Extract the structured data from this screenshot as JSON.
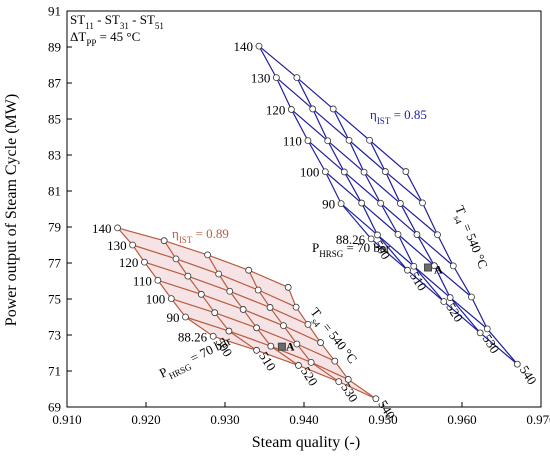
{
  "chart_data": {
    "type": "scatter",
    "title": "",
    "xlabel": "Steam quality (-)",
    "ylabel": "Power output of Steam Cycle (MW)",
    "xlim": [
      0.91,
      0.97
    ],
    "ylim": [
      69,
      91
    ],
    "xticks": [
      0.91,
      0.92,
      0.93,
      0.94,
      0.95,
      0.96,
      0.97
    ],
    "xtick_labels": [
      "0.910",
      "0.920",
      "0.930",
      "0.940",
      "0.950",
      "0.960",
      "0.970"
    ],
    "yticks": [
      69,
      71,
      73,
      75,
      77,
      79,
      81,
      83,
      85,
      87,
      89,
      91
    ],
    "ytick_labels": [
      "69",
      "71",
      "73",
      "75",
      "77",
      "79",
      "81",
      "83",
      "85",
      "87",
      "89",
      "91"
    ],
    "grid": false,
    "annotations": {
      "config_line1": "ST",
      "config_line1_sub": "11 - ST31 - ST51",
      "config_prefix": "ST",
      "config_subs": [
        "11",
        "31",
        "51"
      ],
      "config_sep": " - ",
      "dt_main": "ΔT",
      "dt_sub": "PP",
      "dt_value": " = 45 °C",
      "eta_main": "η",
      "eta_sub": "IST"
    },
    "series": [
      {
        "name": "η_IST = 0.85",
        "efficiency_label_value": " = 0.85",
        "color": "#1f1f9e",
        "pressure_label_main": "P",
        "pressure_label_sub": "HRSG",
        "pressure_label_value": " = 70 bar",
        "temp_label_main": "T",
        "temp_label_sub": "s4",
        "temp_label_value": " = 540 °C",
        "pressures": [
          "140",
          "130",
          "120",
          "110",
          "100",
          "90",
          "88.26"
        ],
        "temperatures": [
          "500",
          "510",
          "520",
          "530",
          "540"
        ],
        "marker_label": "A",
        "marker": {
          "x": 0.9557,
          "y": 76.75
        },
        "grid_points": [
          [
            [
              0.9343,
              89.05
            ],
            [
              0.9391,
              87.3
            ],
            [
              0.9437,
              85.56
            ],
            [
              0.9483,
              83.82
            ],
            [
              0.9529,
              82.08
            ]
          ],
          [
            [
              0.9365,
              87.3
            ],
            [
              0.9411,
              85.56
            ],
            [
              0.9457,
              83.82
            ],
            [
              0.9503,
              82.08
            ],
            [
              0.955,
              80.34
            ]
          ],
          [
            [
              0.9384,
              85.53
            ],
            [
              0.943,
              83.79
            ],
            [
              0.9476,
              82.05
            ],
            [
              0.9522,
              80.31
            ],
            [
              0.9569,
              78.57
            ]
          ],
          [
            [
              0.9405,
              83.8
            ],
            [
              0.9451,
              82.06
            ],
            [
              0.9497,
              80.32
            ],
            [
              0.9543,
              78.58
            ],
            [
              0.9589,
              76.84
            ]
          ],
          [
            [
              0.9427,
              82.07
            ],
            [
              0.9473,
              80.33
            ],
            [
              0.9519,
              78.59
            ],
            [
              0.9565,
              76.85
            ],
            [
              0.9612,
              75.11
            ]
          ],
          [
            [
              0.9447,
              80.3
            ],
            [
              0.9493,
              78.56
            ],
            [
              0.9539,
              76.82
            ],
            [
              0.9585,
              75.08
            ],
            [
              0.9632,
              73.34
            ]
          ],
          [
            [
              0.9485,
              78.34
            ],
            [
              0.9531,
              76.6
            ],
            [
              0.9577,
              74.86
            ],
            [
              0.9623,
              73.12
            ],
            [
              0.967,
              71.38
            ]
          ]
        ]
      },
      {
        "name": "η_IST = 0.89",
        "efficiency_label_value": " = 0.89",
        "color": "#b85c3f",
        "pressure_label_main": "P",
        "pressure_label_sub": "HRSG",
        "pressure_label_value": " = 70 bar",
        "temp_label_main": "T",
        "temp_label_sub": "s4",
        "temp_label_value": " = 540 °C",
        "pressures": [
          "140",
          "130",
          "120",
          "110",
          "100",
          "90",
          "88.26"
        ],
        "temperatures": [
          "500",
          "510",
          "520",
          "530",
          "540"
        ],
        "marker_label": "A",
        "marker": {
          "x": 0.9372,
          "y": 72.35
        },
        "grid_points": [
          [
            [
              0.9164,
              78.95
            ],
            [
              0.9223,
              78.24
            ],
            [
              0.9278,
              77.45
            ],
            [
              0.933,
              76.6
            ],
            [
              0.938,
              75.65
            ]
          ],
          [
            [
              0.9183,
              78.0
            ],
            [
              0.9238,
              77.23
            ],
            [
              0.9292,
              76.39
            ],
            [
              0.9342,
              75.5
            ],
            [
              0.939,
              74.55
            ]
          ],
          [
            [
              0.9198,
              77.05
            ],
            [
              0.9253,
              76.27
            ],
            [
              0.9306,
              75.43
            ],
            [
              0.9357,
              74.53
            ],
            [
              0.9405,
              73.59
            ]
          ],
          [
            [
              0.9215,
              76.04
            ],
            [
              0.927,
              75.26
            ],
            [
              0.9323,
              74.42
            ],
            [
              0.9374,
              73.52
            ],
            [
              0.9421,
              72.58
            ]
          ],
          [
            [
              0.9232,
              75.02
            ],
            [
              0.9287,
              74.24
            ],
            [
              0.934,
              73.4
            ],
            [
              0.9391,
              72.5
            ],
            [
              0.9439,
              71.55
            ]
          ],
          [
            [
              0.925,
              74.0
            ],
            [
              0.9305,
              73.22
            ],
            [
              0.9358,
              72.38
            ],
            [
              0.9409,
              71.48
            ],
            [
              0.9456,
              70.53
            ]
          ],
          [
            [
              0.9285,
              72.93
            ],
            [
              0.934,
              72.15
            ],
            [
              0.9393,
              71.31
            ],
            [
              0.9444,
              70.41
            ],
            [
              0.9491,
              69.46
            ]
          ]
        ]
      }
    ]
  }
}
